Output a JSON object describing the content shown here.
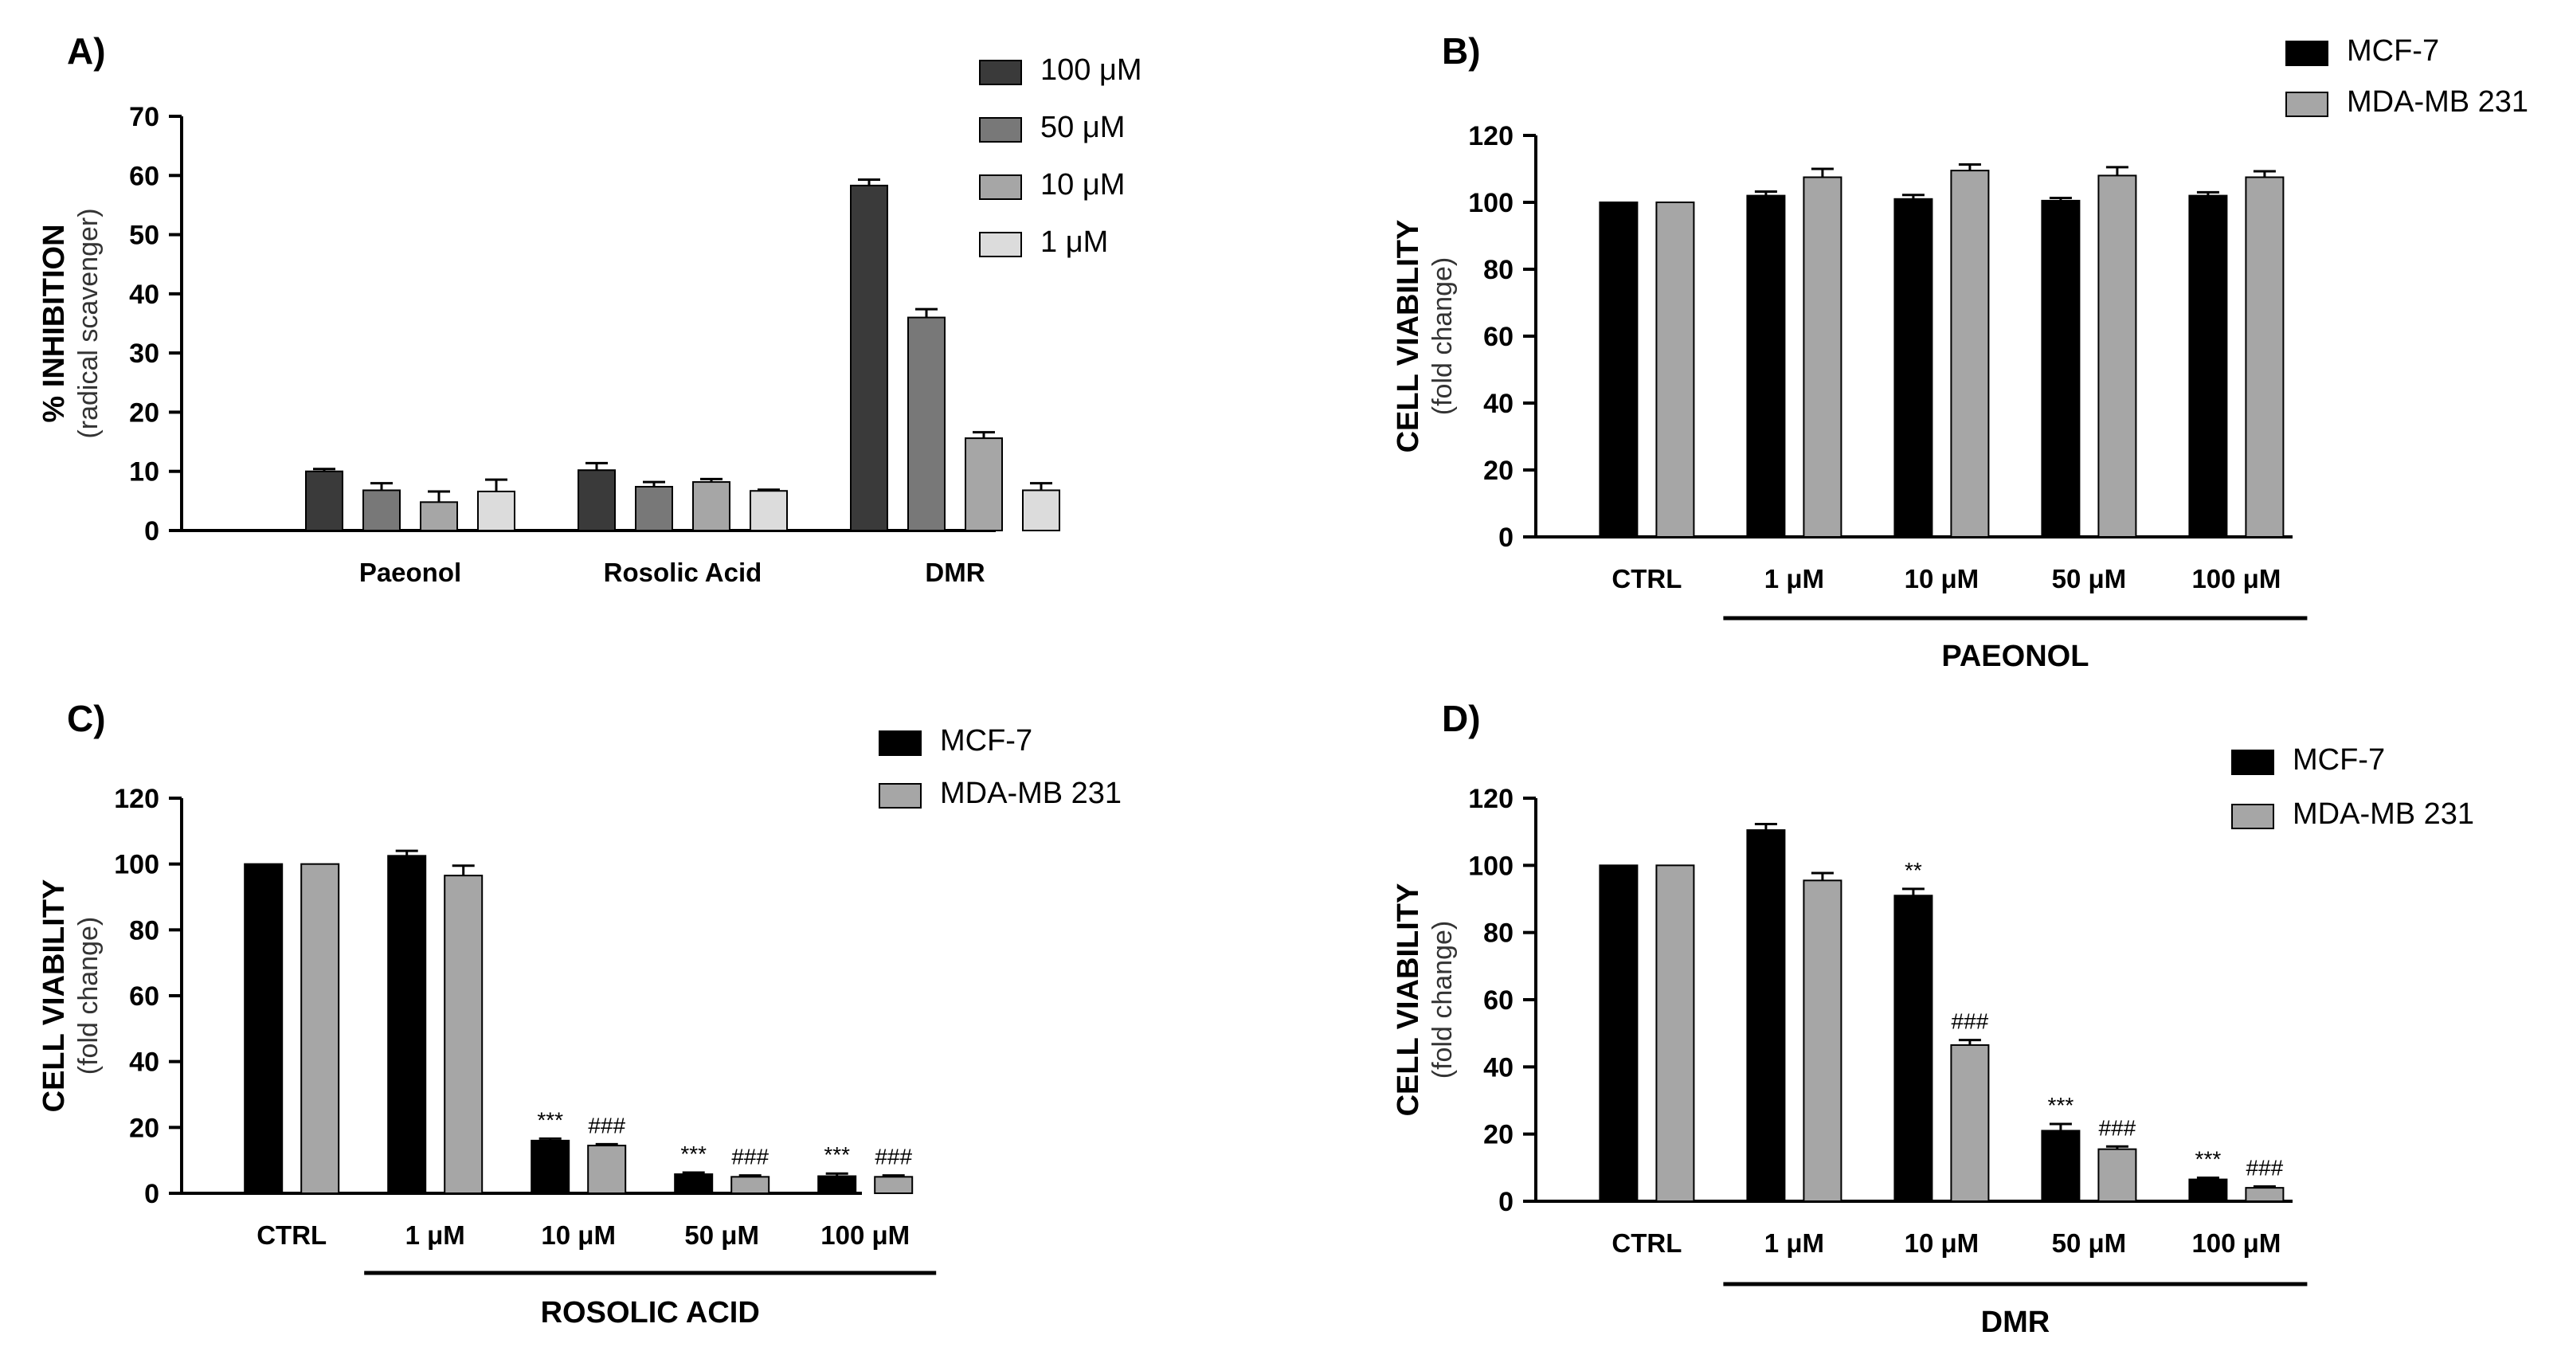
{
  "chart_data": [
    {
      "type": "bar",
      "panel": "A)",
      "title": "",
      "ylabel": "% INHIBITION",
      "ylabel_sub": "(radical scavenger)",
      "xlabel": "",
      "ylim": [
        0,
        70
      ],
      "yticks": [
        0,
        10,
        20,
        30,
        40,
        50,
        60,
        70
      ],
      "categories": [
        "Paeonol",
        "Rosolic Acid",
        "DMR"
      ],
      "legend_position": "top-right",
      "series": [
        {
          "name": "100 μM",
          "color": "#3a3a3a",
          "values": [
            10.0,
            10.2,
            58.3
          ],
          "errors": [
            0.4,
            1.2,
            1.0
          ]
        },
        {
          "name": "50 μM",
          "color": "#787878",
          "values": [
            6.8,
            7.4,
            36.0
          ],
          "errors": [
            1.2,
            0.8,
            1.4
          ]
        },
        {
          "name": "10 μM",
          "color": "#a6a6a6",
          "values": [
            4.8,
            8.2,
            15.6
          ],
          "errors": [
            1.8,
            0.5,
            1.0
          ]
        },
        {
          "name": "1 μM",
          "color": "#dcdcdc",
          "values": [
            6.6,
            6.7,
            6.8
          ],
          "errors": [
            2.0,
            0.2,
            1.2
          ]
        }
      ],
      "group_label": ""
    },
    {
      "type": "bar",
      "panel": "B)",
      "title": "",
      "ylabel": "CELL VIABILITY",
      "ylabel_sub": "(fold change)",
      "xlabel": "",
      "ylim": [
        0,
        120
      ],
      "yticks": [
        0,
        20,
        40,
        60,
        80,
        100,
        120
      ],
      "categories": [
        "CTRL",
        "1 μM",
        "10 μM",
        "50 μM",
        "100 μM"
      ],
      "legend_position": "top-right",
      "series": [
        {
          "name": "MCF-7",
          "color": "#000000",
          "values": [
            100,
            102,
            101,
            100.5,
            102
          ],
          "errors": [
            0,
            1.2,
            1.2,
            0.8,
            1.0
          ]
        },
        {
          "name": "MDA-MB 231",
          "color": "#a6a6a6",
          "values": [
            100,
            107.5,
            109.5,
            108,
            107.5
          ],
          "errors": [
            0,
            2.5,
            1.8,
            2.5,
            1.8
          ]
        }
      ],
      "annotations": [
        {
          "series": "MCF-7",
          "labels": [
            "",
            "",
            "",
            "",
            ""
          ]
        },
        {
          "series": "MDA-MB 231",
          "labels": [
            "",
            "",
            "",
            "",
            ""
          ]
        }
      ],
      "group_label": "PAEONOL"
    },
    {
      "type": "bar",
      "panel": "C)",
      "title": "",
      "ylabel": "CELL VIABILITY",
      "ylabel_sub": "(fold change)",
      "xlabel": "",
      "ylim": [
        0,
        120
      ],
      "yticks": [
        0,
        20,
        40,
        60,
        80,
        100,
        120
      ],
      "categories": [
        "CTRL",
        "1 μM",
        "10 μM",
        "50 μM",
        "100 μM"
      ],
      "legend_position": "top-right",
      "series": [
        {
          "name": "MCF-7",
          "color": "#000000",
          "values": [
            100,
            102.5,
            16,
            5.8,
            5.2
          ],
          "errors": [
            0,
            1.5,
            0.6,
            0.5,
            0.8
          ]
        },
        {
          "name": "MDA-MB 231",
          "color": "#a6a6a6",
          "values": [
            100,
            96.5,
            14.5,
            5.0,
            5.0
          ],
          "errors": [
            0,
            3.0,
            0.4,
            0.4,
            0.4
          ]
        }
      ],
      "annotations": [
        {
          "series": "MCF-7",
          "labels": [
            "",
            "",
            "***",
            "***",
            "***"
          ]
        },
        {
          "series": "MDA-MB 231",
          "labels": [
            "",
            "",
            "###",
            "###",
            "###"
          ]
        }
      ],
      "group_label": "ROSOLIC ACID"
    },
    {
      "type": "bar",
      "panel": "D)",
      "title": "",
      "ylabel": "CELL VIABILITY",
      "ylabel_sub": "(fold change)",
      "xlabel": "",
      "ylim": [
        0,
        120
      ],
      "yticks": [
        0,
        20,
        40,
        60,
        80,
        100,
        120
      ],
      "categories": [
        "CTRL",
        "1 μM",
        "10 μM",
        "50 μM",
        "100 μM"
      ],
      "legend_position": "top-right",
      "series": [
        {
          "name": "MCF-7",
          "color": "#000000",
          "values": [
            100,
            110.5,
            91,
            21,
            6.5
          ],
          "errors": [
            0,
            1.8,
            2.0,
            2.0,
            0.5
          ]
        },
        {
          "name": "MDA-MB 231",
          "color": "#a6a6a6",
          "values": [
            100,
            95.5,
            46.5,
            15.5,
            4.0
          ],
          "errors": [
            0,
            2.2,
            1.5,
            0.8,
            0.4
          ]
        }
      ],
      "annotations": [
        {
          "series": "MCF-7",
          "labels": [
            "",
            "",
            "**",
            "***",
            "***"
          ]
        },
        {
          "series": "MDA-MB 231",
          "labels": [
            "",
            "",
            "###",
            "###",
            "###"
          ]
        }
      ],
      "group_label": "DMR"
    }
  ]
}
